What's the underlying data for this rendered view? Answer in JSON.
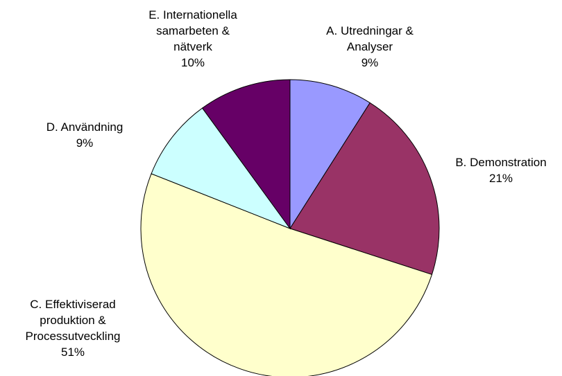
{
  "chart_data": {
    "type": "pie",
    "categories": [
      "A. Utredningar & Analyser",
      "B. Demonstration",
      "C. Effektiviserad produktion & Processutveckling",
      "D. Användning",
      "E. Internationella samarbeten & nätverk"
    ],
    "values": [
      9,
      21,
      51,
      9,
      10
    ],
    "value_labels": [
      "9%",
      "21%",
      "51%",
      "9%",
      "10%"
    ],
    "colors": [
      "#9999ff",
      "#993366",
      "#ffffcc",
      "#ccffff",
      "#660066"
    ]
  }
}
